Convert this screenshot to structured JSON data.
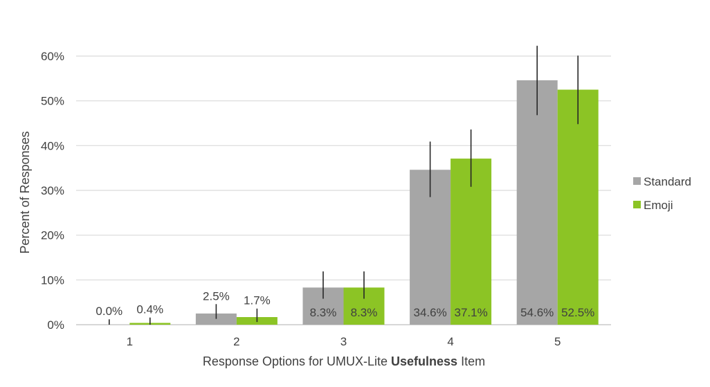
{
  "chart_data": {
    "type": "bar",
    "categories": [
      "1",
      "2",
      "3",
      "4",
      "5"
    ],
    "series": [
      {
        "name": "Standard",
        "color": "#a6a6a6",
        "values": [
          0.0,
          2.5,
          8.3,
          34.6,
          54.6
        ],
        "labels": [
          "0.0%",
          "2.5%",
          "8.3%",
          "34.6%",
          "54.6%"
        ],
        "error_low": [
          0.0,
          1.3,
          5.8,
          28.5,
          46.8
        ],
        "error_high": [
          1.2,
          4.6,
          11.9,
          40.9,
          62.3
        ]
      },
      {
        "name": "Emoji",
        "color": "#8cc425",
        "values": [
          0.4,
          1.7,
          8.3,
          37.1,
          52.5
        ],
        "labels": [
          "0.4%",
          "1.7%",
          "8.3%",
          "37.1%",
          "52.5%"
        ],
        "error_low": [
          0.0,
          0.6,
          5.8,
          30.8,
          44.8
        ],
        "error_high": [
          1.6,
          3.6,
          11.9,
          43.6,
          60.1
        ]
      }
    ],
    "ylabel": "Percent of Responses",
    "xlabel_parts": [
      {
        "text": "Response Options for UMUX-Lite ",
        "bold": false
      },
      {
        "text": "Usefulness",
        "bold": true
      },
      {
        "text": " Item",
        "bold": false
      }
    ],
    "yticks": [
      "0%",
      "10%",
      "20%",
      "30%",
      "40%",
      "50%",
      "60%"
    ],
    "ylim": [
      0,
      60
    ],
    "grid": true,
    "legend_position": "right",
    "colors": {
      "gridline": "#d9d9d9",
      "axis": "#bfbfbf",
      "error_bar": "#262626",
      "text": "#404040"
    }
  }
}
